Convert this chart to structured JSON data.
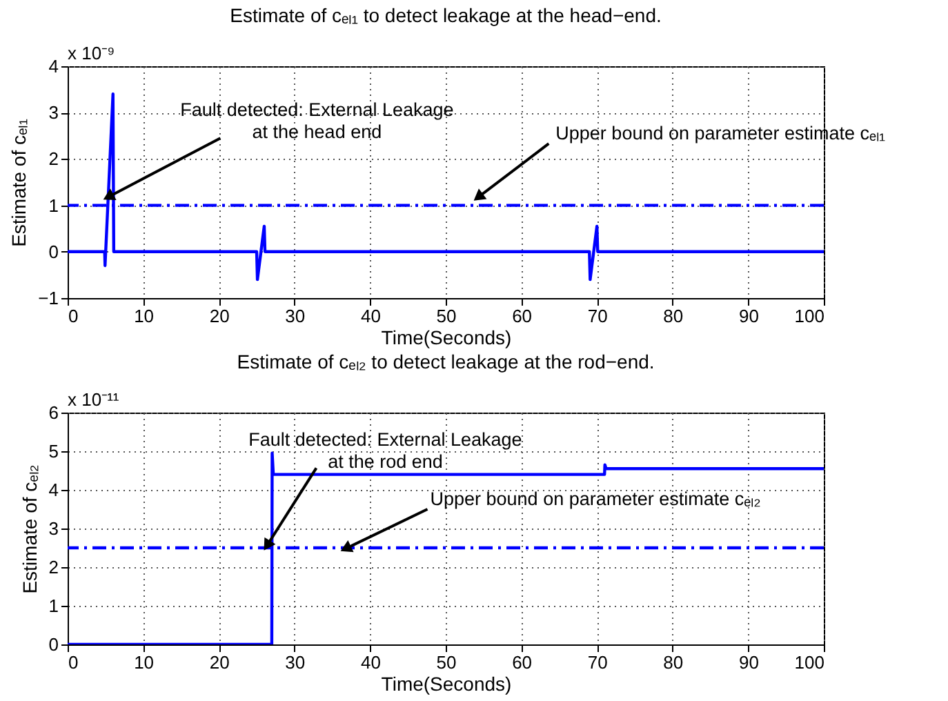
{
  "chart_data": [
    {
      "type": "line",
      "title": "Estimate of cₑₗ₁ to detect leakage at the head−end.",
      "xlabel": "Time(Seconds)",
      "ylabel": "Estimate of cₑₗ₁",
      "series": [
        {
          "color": "#0000ff",
          "x": [
            0,
            4.9,
            4.95,
            6.0,
            6.1,
            25.0,
            25.1,
            26.0,
            26.1,
            69.0,
            69.1,
            70.0,
            70.1,
            100
          ],
          "values": [
            0,
            0,
            -0.3,
            3.4,
            0,
            0,
            -0.6,
            0.55,
            0,
            0,
            -0.6,
            0.55,
            0,
            0
          ]
        }
      ],
      "ref_lines": [
        {
          "axis": "y",
          "value": 1,
          "color": "#0000ff",
          "line_style": "dashed"
        }
      ],
      "annotations": [
        "x 10⁻⁹",
        {
          "text": "Fault detected: External Leakage\nat the head end",
          "x": 5.6,
          "y": 1.2
        },
        {
          "text": "Upper bound on parameter estimate cₑₗ₁",
          "x": 54.5,
          "y": 1.2
        }
      ],
      "xlim": [
        0,
        100
      ],
      "xticks": [
        0,
        10,
        20,
        30,
        40,
        50,
        60,
        70,
        80,
        90,
        100
      ],
      "ylim": [
        -1,
        4
      ],
      "yticks": [
        -1,
        0,
        1,
        2,
        3,
        4
      ],
      "grid": true,
      "line_style": "solid"
    },
    {
      "type": "line",
      "title": "Estimate of cₑₗ₂ to detect leakage at the rod−end.",
      "xlabel": "Time(Seconds)",
      "ylabel": "Estimate of cₑₗ₂",
      "series": [
        {
          "color": "#0000ff",
          "x": [
            0,
            27.0,
            27.05,
            27.2,
            71.0,
            71.05,
            71.2,
            100
          ],
          "values": [
            0,
            0,
            4.95,
            4.4,
            4.4,
            4.65,
            4.55,
            4.55
          ]
        }
      ],
      "ref_lines": [
        {
          "axis": "y",
          "value": 2.5,
          "color": "#0000ff",
          "line_style": "dashed"
        }
      ],
      "annotations": [
        "x 10⁻¹¹",
        {
          "text": "Fault detected: External Leakage\nat the rod end",
          "x": 26.5,
          "y": 2.6
        },
        {
          "text": "Upper bound on parameter estimate cₑₗ₂",
          "x": 37,
          "y": 2.5
        }
      ],
      "xlim": [
        0,
        100
      ],
      "xticks": [
        0,
        10,
        20,
        30,
        40,
        50,
        60,
        70,
        80,
        90,
        100
      ],
      "ylim": [
        0,
        6
      ],
      "yticks": [
        0,
        1,
        2,
        3,
        4,
        5,
        6
      ],
      "grid": true,
      "line_style": "solid"
    }
  ]
}
